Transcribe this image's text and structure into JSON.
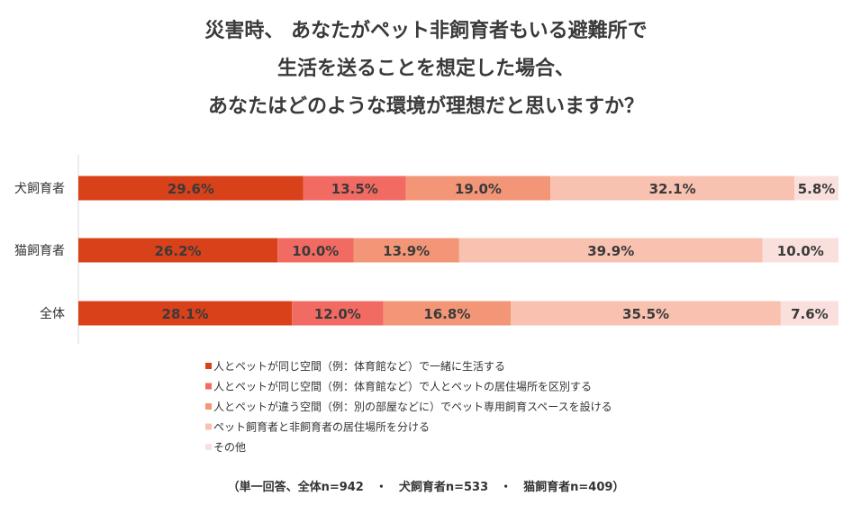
{
  "title_lines": [
    "災害時、 あなたがペット非飼育者もいる避難所で",
    "生活を送ることを想定した場合、",
    "あなたはどのような環境が理想だと思いますか？"
  ],
  "footnote": "（単一回答、全体n=942　・　犬飼育者n=533　・　猫飼育者n=409）",
  "chart_data": {
    "type": "bar",
    "orientation": "horizontal",
    "stacked": true,
    "percent": true,
    "categories": [
      "犬飼育者",
      "猫飼育者",
      "全体"
    ],
    "series": [
      {
        "name": "人とペットが同じ空間（例：体育館など）で一緒に生活する",
        "color": "#d9411a",
        "values": [
          29.6,
          26.2,
          28.1
        ]
      },
      {
        "name": "人とペットが同じ空間（例：体育館など）で人とペットの居住場所を区別する",
        "color": "#f26b63",
        "values": [
          13.5,
          10.0,
          12.0
        ]
      },
      {
        "name": "人とペットが違う空間（例：別の部屋などに）でペット専用飼育スペースを設ける",
        "color": "#f29677",
        "values": [
          19.0,
          13.9,
          16.8
        ]
      },
      {
        "name": "ペット飼育者と非飼育者の居住場所を分ける",
        "color": "#f8c1b0",
        "values": [
          32.1,
          39.9,
          35.5
        ]
      },
      {
        "name": "その他",
        "color": "#fae0dc",
        "values": [
          5.8,
          10.0,
          7.6
        ]
      }
    ],
    "value_format": "{v}%",
    "xlim": [
      0,
      100
    ],
    "legend_position": "bottom-left",
    "grid": false
  }
}
